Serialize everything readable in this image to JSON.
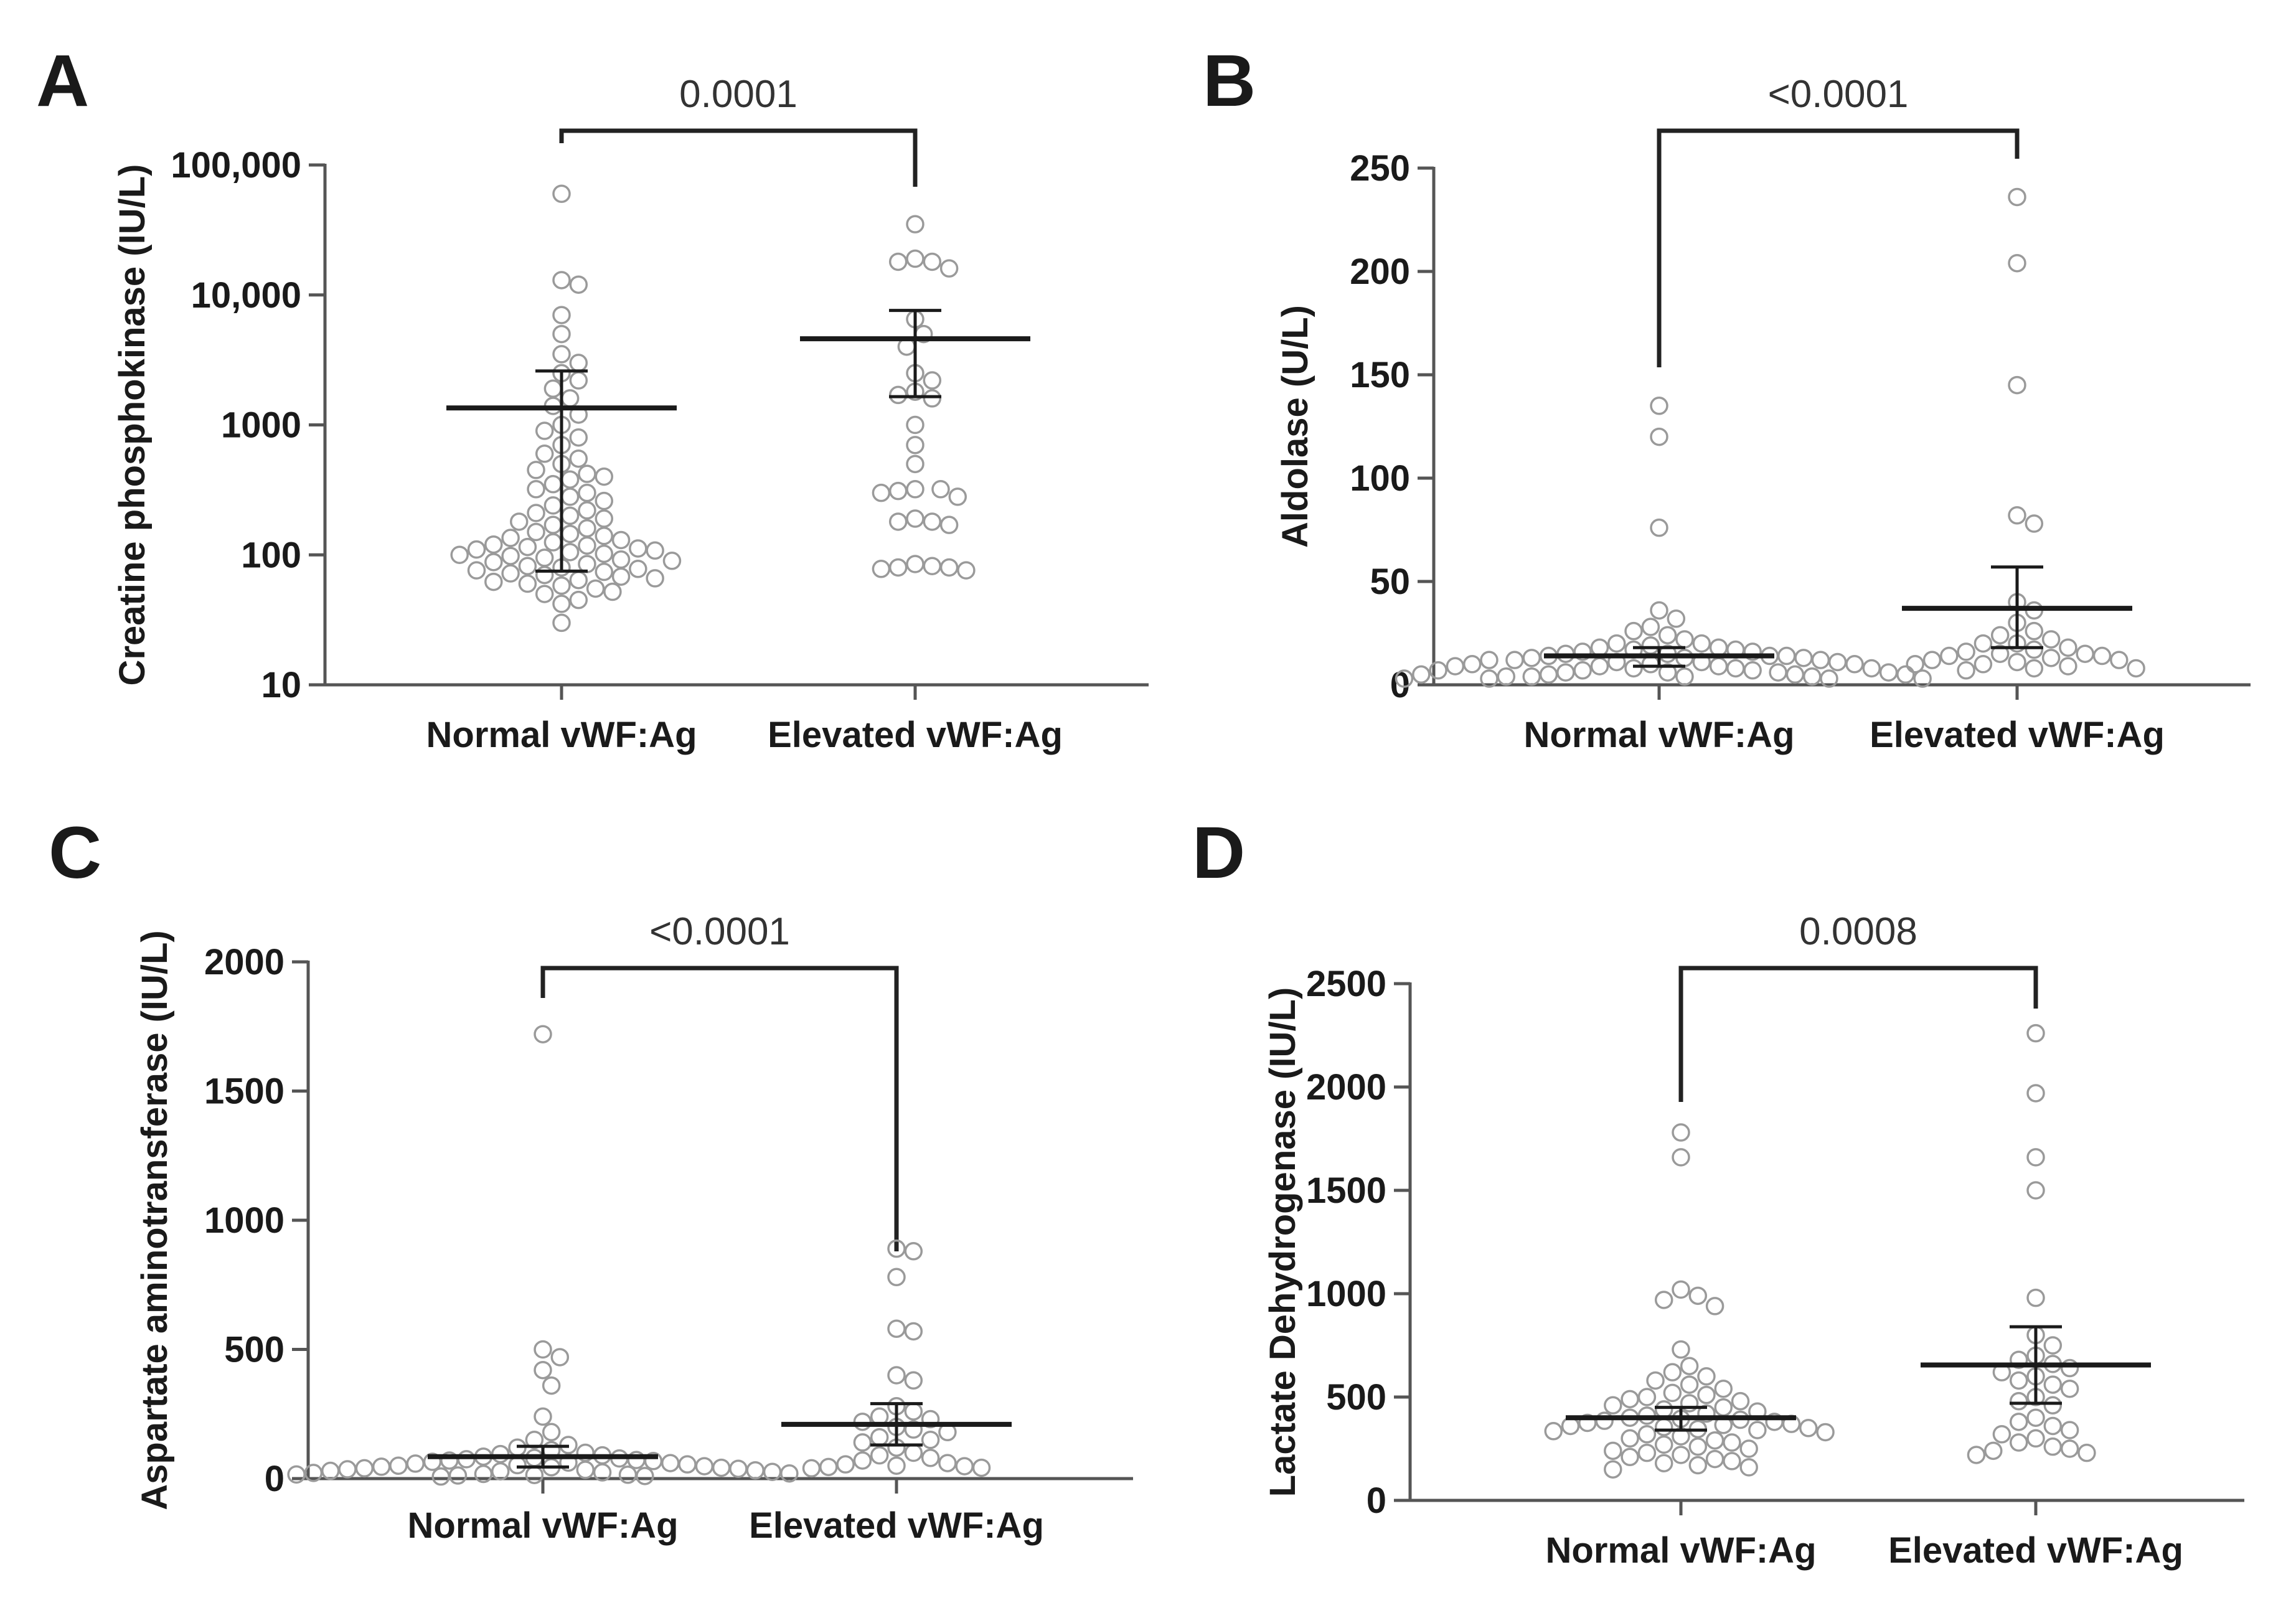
{
  "chart_data": [
    {
      "type": "scatter",
      "panel": "A",
      "ylabel": "Creatine phosphokinase (IU/L)",
      "yscale": "log",
      "ylim": [
        10,
        100000
      ],
      "yticks": [
        10,
        100,
        1000,
        10000,
        100000
      ],
      "ytick_labels": [
        "10",
        "100",
        "1000",
        "10,000",
        "100,000"
      ],
      "categories": [
        "Normal vWF:Ag",
        "Elevated vWF:Ag"
      ],
      "pvalue": "0.0001",
      "series": [
        {
          "name": "Normal vWF:Ag",
          "mean": 1350,
          "ci_low": 75,
          "ci_high": 2600,
          "values": [
            60000,
            13000,
            12000,
            7000,
            5000,
            3500,
            3000,
            2500,
            2200,
            1900,
            1600,
            1400,
            1200,
            1000,
            900,
            800,
            700,
            600,
            550,
            500,
            450,
            420,
            400,
            380,
            350,
            320,
            300,
            280,
            260,
            240,
            220,
            210,
            200,
            190,
            180,
            170,
            160,
            150,
            145,
            140,
            135,
            130,
            125,
            120,
            118,
            115,
            112,
            110,
            108,
            105,
            102,
            100,
            98,
            95,
            92,
            90,
            88,
            85,
            82,
            80,
            78,
            76,
            74,
            72,
            70,
            68,
            66,
            64,
            62,
            60,
            58,
            55,
            52,
            50,
            45,
            42,
            30
          ]
        },
        {
          "name": "Elevated vWF:Ag",
          "mean": 4600,
          "ci_low": 1650,
          "ci_high": 7600,
          "values": [
            35000,
            19000,
            18000,
            18000,
            16000,
            6500,
            5000,
            4000,
            2500,
            2200,
            1800,
            1700,
            1600,
            1000,
            700,
            500,
            320,
            320,
            310,
            300,
            280,
            190,
            180,
            180,
            170,
            85,
            82,
            80,
            80,
            78,
            76
          ]
        }
      ]
    },
    {
      "type": "scatter",
      "panel": "B",
      "ylabel": "Aldolase (U/L)",
      "yscale": "linear",
      "ylim": [
        0,
        250
      ],
      "yticks": [
        0,
        50,
        100,
        150,
        200,
        250
      ],
      "ytick_labels": [
        "0",
        "50",
        "100",
        "150",
        "200",
        "250"
      ],
      "categories": [
        "Normal vWF:Ag",
        "Elevated vWF:Ag"
      ],
      "pvalue": "<0.0001",
      "series": [
        {
          "name": "Normal vWF:Ag",
          "mean": 14,
          "ci_low": 9,
          "ci_high": 18,
          "values": [
            135,
            120,
            76,
            36,
            32,
            28,
            26,
            24,
            22,
            20,
            20,
            19,
            18,
            18,
            17,
            17,
            16,
            16,
            15,
            15,
            14,
            14,
            14,
            13,
            13,
            13,
            12,
            12,
            12,
            11,
            11,
            11,
            10,
            10,
            10,
            9,
            9,
            9,
            8,
            8,
            8,
            7,
            7,
            7,
            6,
            6,
            6,
            6,
            5,
            5,
            5,
            5,
            4,
            4,
            4,
            4,
            3,
            3,
            3,
            3
          ]
        },
        {
          "name": "Elevated vWF:Ag",
          "mean": 37,
          "ci_low": 18,
          "ci_high": 57,
          "values": [
            236,
            204,
            145,
            82,
            78,
            40,
            36,
            30,
            26,
            24,
            22,
            20,
            20,
            18,
            17,
            16,
            15,
            15,
            14,
            14,
            13,
            12,
            12,
            11,
            10,
            10,
            9,
            8,
            8,
            7
          ]
        }
      ]
    },
    {
      "type": "scatter",
      "panel": "C",
      "ylabel": "Aspartate aminotransferase (IU/L)",
      "yscale": "linear",
      "ylim": [
        0,
        2000
      ],
      "yticks": [
        0,
        500,
        1000,
        1500,
        2000
      ],
      "ytick_labels": [
        "0",
        "500",
        "1000",
        "1500",
        "2000"
      ],
      "categories": [
        "Normal vWF:Ag",
        "Elevated vWF:Ag"
      ],
      "pvalue": "<0.0001",
      "series": [
        {
          "name": "Normal vWF:Ag",
          "mean": 85,
          "ci_low": 45,
          "ci_high": 125,
          "values": [
            1720,
            500,
            470,
            420,
            360,
            240,
            180,
            150,
            130,
            120,
            110,
            100,
            95,
            90,
            85,
            80,
            78,
            75,
            72,
            70,
            68,
            65,
            62,
            60,
            58,
            55,
            52,
            50,
            48,
            46,
            44,
            42,
            40,
            38,
            36,
            34,
            32,
            30,
            28,
            26,
            24,
            22,
            20,
            18,
            16,
            15,
            14,
            12,
            10,
            8
          ]
        },
        {
          "name": "Elevated vWF:Ag",
          "mean": 210,
          "ci_low": 130,
          "ci_high": 290,
          "values": [
            890,
            880,
            780,
            580,
            570,
            400,
            380,
            280,
            260,
            240,
            230,
            220,
            200,
            190,
            180,
            160,
            150,
            140,
            120,
            100,
            90,
            80,
            70,
            60,
            55,
            50,
            48,
            45,
            42,
            40
          ]
        }
      ]
    },
    {
      "type": "scatter",
      "panel": "D",
      "ylabel": "Lactate Dehydrogenase (IU/L)",
      "yscale": "linear",
      "ylim": [
        0,
        2500
      ],
      "yticks": [
        0,
        500,
        1000,
        1500,
        2000,
        2500
      ],
      "ytick_labels": [
        "0",
        "500",
        "1000",
        "1500",
        "2000",
        "2500"
      ],
      "categories": [
        "Normal vWF:Ag",
        "Elevated vWF:Ag"
      ],
      "pvalue": "0.0008",
      "series": [
        {
          "name": "Normal vWF:Ag",
          "mean": 400,
          "ci_low": 340,
          "ci_high": 450,
          "values": [
            1780,
            1660,
            1020,
            990,
            970,
            940,
            730,
            650,
            620,
            600,
            580,
            560,
            540,
            520,
            510,
            500,
            490,
            480,
            470,
            460,
            450,
            440,
            430,
            420,
            410,
            400,
            395,
            390,
            385,
            380,
            375,
            370,
            365,
            360,
            355,
            350,
            345,
            340,
            335,
            330,
            320,
            310,
            300,
            290,
            280,
            270,
            260,
            250,
            240,
            230,
            220,
            210,
            200,
            190,
            180,
            170,
            160,
            150
          ]
        },
        {
          "name": "Elevated vWF:Ag",
          "mean": 655,
          "ci_low": 470,
          "ci_high": 840,
          "values": [
            2260,
            1970,
            1660,
            1500,
            980,
            800,
            750,
            700,
            680,
            660,
            640,
            620,
            600,
            580,
            560,
            540,
            500,
            480,
            460,
            400,
            380,
            360,
            340,
            320,
            300,
            280,
            260,
            250,
            240,
            230,
            220
          ]
        }
      ]
    }
  ]
}
